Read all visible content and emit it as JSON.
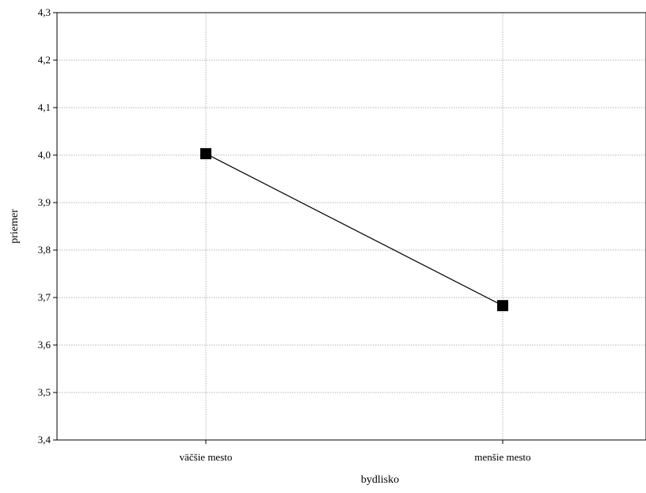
{
  "chart_data": {
    "type": "line",
    "categories": [
      "väčšie mesto",
      "menšie mesto"
    ],
    "series": [
      {
        "values": [
          4.003,
          3.683
        ]
      }
    ],
    "xlabel": "bydlisko",
    "ylabel": "priemer",
    "ylim": [
      3.4,
      4.3
    ],
    "yticks": [
      "3,4",
      "3,5",
      "3,6",
      "3,7",
      "3,8",
      "3,9",
      "4,0",
      "4,1",
      "4,2",
      "4,3"
    ],
    "grid": true,
    "legend": "none",
    "colors": {
      "line": "#000000",
      "marker": "#000000",
      "grid": "#b5b5b5"
    }
  }
}
